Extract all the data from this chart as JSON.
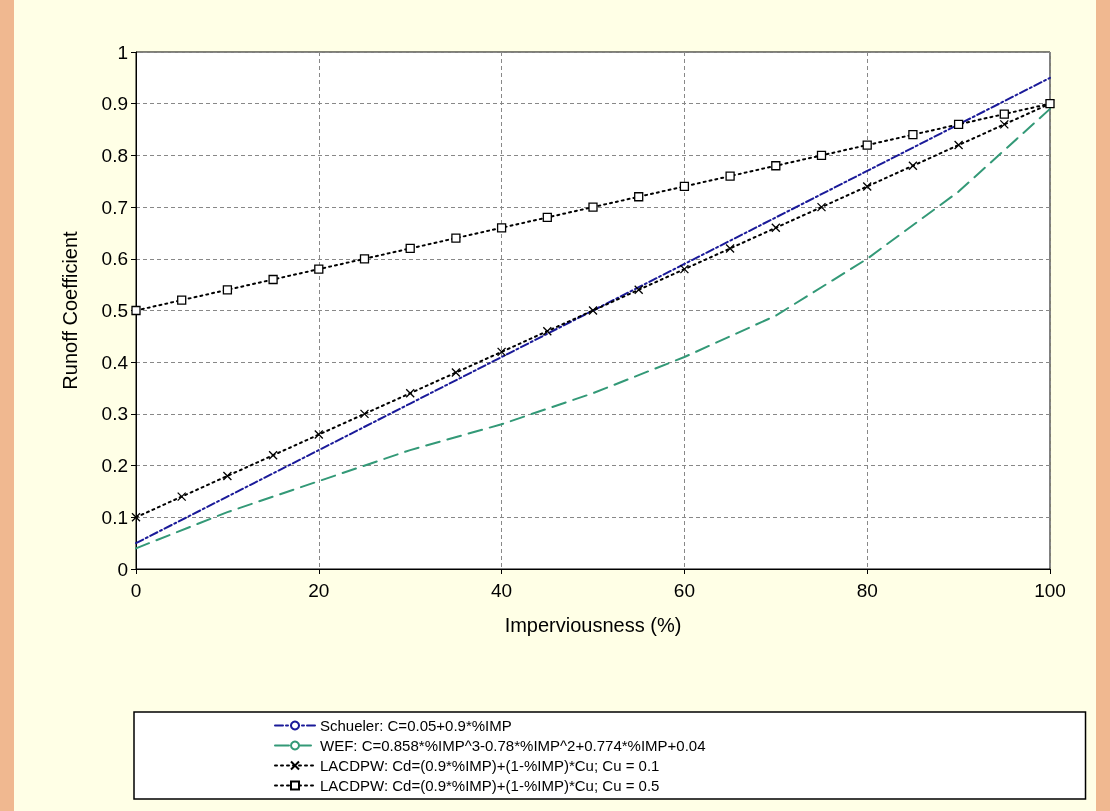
{
  "chart_data": {
    "type": "line",
    "xlabel": "Imperviousness (%)",
    "ylabel": "Runoff Coefficient",
    "xlim": [
      0,
      100
    ],
    "xticks": [
      0,
      20,
      40,
      60,
      80,
      100
    ],
    "ylim": [
      0,
      1
    ],
    "yticks": [
      0,
      0.1,
      0.2,
      0.3,
      0.4,
      0.5,
      0.6,
      0.7,
      0.8,
      0.9,
      1
    ],
    "grid": true,
    "legend": "bottom",
    "series": [
      {
        "name": "Schueler: C=0.05+0.9*%IMP",
        "color": "#1a1a99",
        "line_style": "dashdot",
        "marker": "none",
        "x": [
          0,
          10,
          20,
          30,
          40,
          50,
          60,
          70,
          80,
          90,
          100
        ],
        "values": [
          0.05,
          0.14,
          0.23,
          0.32,
          0.41,
          0.5,
          0.59,
          0.68,
          0.77,
          0.86,
          0.95
        ]
      },
      {
        "name": "WEF: C=0.858*%IMP^3-0.78*%IMP^2+0.774*%IMP+0.04",
        "color": "#339977",
        "line_style": "dashed",
        "marker": "none",
        "x": [
          0,
          10,
          20,
          30,
          40,
          50,
          60,
          70,
          80,
          90,
          100
        ],
        "values": [
          0.04,
          0.11,
          0.17,
          0.23,
          0.28,
          0.34,
          0.41,
          0.49,
          0.6,
          0.73,
          0.89
        ]
      },
      {
        "name": "LACDPW: Cd=(0.9*%IMP)+(1-%IMP)*Cu; Cu = 0.1",
        "color": "#000000",
        "line_style": "dotted",
        "marker": "cross",
        "x": [
          0,
          5,
          10,
          15,
          20,
          25,
          30,
          35,
          40,
          45,
          50,
          55,
          60,
          65,
          70,
          75,
          80,
          85,
          90,
          95,
          100
        ],
        "values": [
          0.1,
          0.14,
          0.18,
          0.22,
          0.26,
          0.3,
          0.34,
          0.38,
          0.42,
          0.46,
          0.5,
          0.54,
          0.58,
          0.62,
          0.66,
          0.7,
          0.74,
          0.78,
          0.82,
          0.86,
          0.9
        ]
      },
      {
        "name": "LACDPW: Cd=(0.9*%IMP)+(1-%IMP)*Cu; Cu = 0.5",
        "color": "#000000",
        "line_style": "dotted",
        "marker": "square",
        "x": [
          0,
          5,
          10,
          15,
          20,
          25,
          30,
          35,
          40,
          45,
          50,
          55,
          60,
          65,
          70,
          75,
          80,
          85,
          90,
          95,
          100
        ],
        "values": [
          0.5,
          0.52,
          0.54,
          0.56,
          0.58,
          0.6,
          0.62,
          0.64,
          0.66,
          0.68,
          0.7,
          0.72,
          0.74,
          0.76,
          0.78,
          0.8,
          0.82,
          0.84,
          0.86,
          0.88,
          0.9
        ]
      }
    ]
  }
}
